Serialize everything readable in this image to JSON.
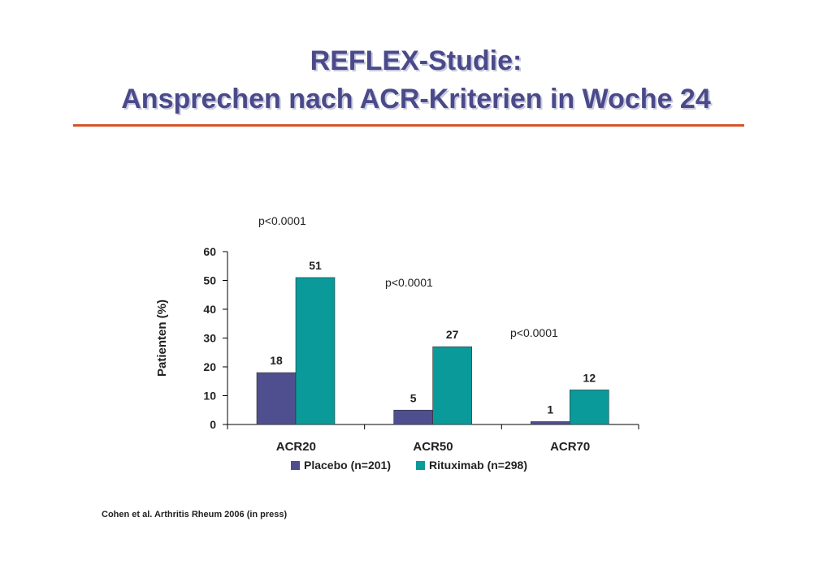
{
  "slide": {
    "title_line1": "REFLEX-Studie:",
    "title_line2": "Ansprechen nach ACR-Kriterien in Woche 24",
    "citation": "Cohen et al. Arthritis Rheum 2006 (in press)"
  },
  "colors": {
    "title": "#4a4a8a",
    "rule": "#d4552b",
    "placebo": "#4f4f8f",
    "rituximab": "#0b9a9a"
  },
  "chart_data": {
    "type": "bar",
    "title": "",
    "xlabel": "",
    "ylabel": "Patienten (%)",
    "ylim": [
      0,
      60
    ],
    "yticks": [
      "0",
      "10",
      "20",
      "30",
      "40",
      "50",
      "60"
    ],
    "categories": [
      "ACR20",
      "ACR50",
      "ACR70"
    ],
    "series": [
      {
        "name": "Placebo (n=201)",
        "values": [
          18,
          5,
          1
        ]
      },
      {
        "name": "Rituximab (n=298)",
        "values": [
          51,
          27,
          12
        ]
      }
    ],
    "annotations": [
      "p<0.0001",
      "p<0.0001",
      "p<0.0001"
    ],
    "legend": "bottom",
    "grid": false
  }
}
